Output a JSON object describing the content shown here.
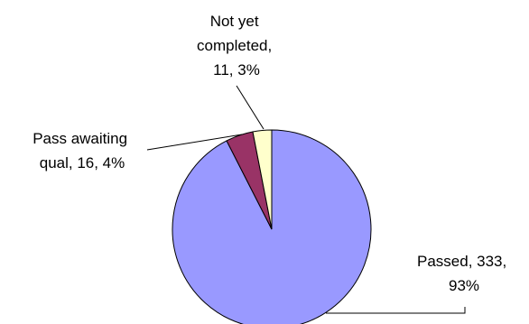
{
  "chart_data": {
    "type": "pie",
    "title": "",
    "slices": [
      {
        "name": "Passed",
        "value": 333,
        "percent": "93%",
        "label_lines": [
          "Passed, 333,",
          "93%"
        ],
        "color": "#9999ff"
      },
      {
        "name": "Pass awaiting qual",
        "value": 16,
        "percent": "4%",
        "label_lines": [
          "Pass awaiting",
          "qual, 16, 4%"
        ],
        "color": "#993366"
      },
      {
        "name": "Not yet completed",
        "value": 11,
        "percent": "3%",
        "label_lines": [
          "Not yet",
          "completed,",
          "11, 3%"
        ],
        "color": "#ffffcc"
      }
    ],
    "legend": "none",
    "start_angle": "12 o'clock, clockwise"
  }
}
